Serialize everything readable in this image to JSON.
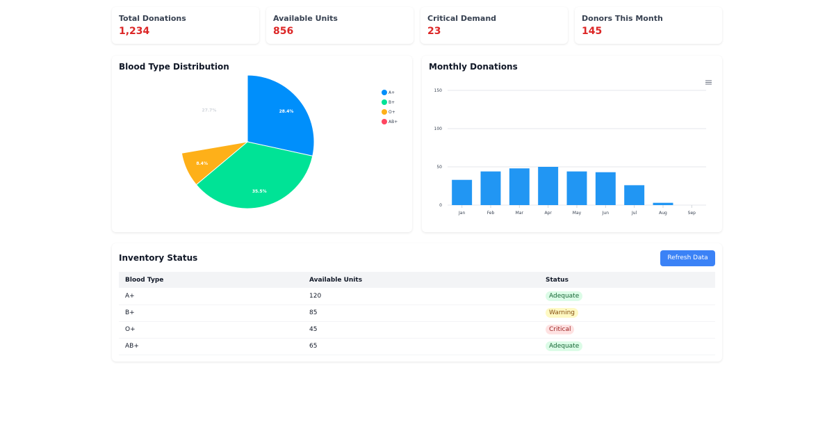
{
  "stats": [
    {
      "label": "Total Donations",
      "value": "1,234"
    },
    {
      "label": "Available Units",
      "value": "856"
    },
    {
      "label": "Critical Demand",
      "value": "23"
    },
    {
      "label": "Donors This Month",
      "value": "145"
    }
  ],
  "pie": {
    "title": "Blood Type Distribution",
    "menu_icon": "hamburger-menu-icon"
  },
  "bars": {
    "title": "Monthly Donations",
    "menu_icon": "hamburger-menu-icon"
  },
  "chart_data": [
    {
      "type": "pie",
      "title": "Blood Type Distribution",
      "categories": [
        "A+",
        "B+",
        "O+",
        "AB+"
      ],
      "values": [
        28.4,
        35.5,
        8.4,
        27.7
      ],
      "labels": [
        "28.4%",
        "35.5%",
        "8.4%",
        "27.7%"
      ],
      "colors": [
        "#008ffb",
        "#00e396",
        "#feb019",
        "#ff4560"
      ],
      "hidden": [
        "AB+"
      ],
      "legend": "top-right"
    },
    {
      "type": "bar",
      "title": "Monthly Donations",
      "categories": [
        "Jan",
        "Feb",
        "Mar",
        "Apr",
        "May",
        "Jun",
        "Jul",
        "Aug",
        "Sep"
      ],
      "values": [
        33,
        44,
        48,
        50,
        44,
        43,
        26,
        3,
        0
      ],
      "ylim": [
        0,
        150
      ],
      "yticks": [
        "0",
        "50",
        "100",
        "150"
      ],
      "grid": true,
      "color": "#2196f3"
    }
  ],
  "inventory": {
    "title": "Inventory Status",
    "refresh_label": "Refresh Data",
    "columns": [
      "Blood Type",
      "Available Units",
      "Status"
    ],
    "rows": [
      {
        "type": "A+",
        "units": "120",
        "status": "Adequate",
        "level": "ok"
      },
      {
        "type": "B+",
        "units": "85",
        "status": "Warning",
        "level": "warn"
      },
      {
        "type": "O+",
        "units": "45",
        "status": "Critical",
        "level": "crit"
      },
      {
        "type": "AB+",
        "units": "65",
        "status": "Adequate",
        "level": "ok"
      }
    ]
  }
}
